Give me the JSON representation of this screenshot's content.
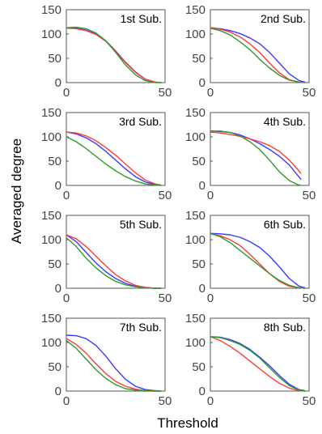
{
  "figure": {
    "xlabel": "Threshold",
    "ylabel": "Averaged degree"
  },
  "colors": {
    "blue": "#3a3aff",
    "red": "#ff3a3a",
    "green": "#2e9a2e",
    "axis": "#555555"
  },
  "chart_data": [
    {
      "type": "line",
      "title": "1st Sub.",
      "xlim": [
        0,
        50
      ],
      "ylim": [
        0,
        150
      ],
      "xticks": [
        "0",
        "50"
      ],
      "yticks": [
        "0",
        "50",
        "100",
        "150"
      ],
      "x": [
        0,
        5,
        10,
        15,
        20,
        25,
        30,
        35,
        40,
        45,
        48
      ],
      "series": [
        {
          "color": "#3a3aff",
          "values": [
            113,
            112,
            108,
            100,
            86,
            65,
            42,
            22,
            7,
            1,
            0
          ]
        },
        {
          "color": "#ff3a3a",
          "values": [
            112,
            111,
            107,
            99,
            85,
            64,
            41,
            21,
            7,
            1,
            0
          ]
        },
        {
          "color": "#2e9a2e",
          "values": [
            113,
            114,
            111,
            102,
            86,
            62,
            36,
            16,
            4,
            0,
            0
          ]
        }
      ]
    },
    {
      "type": "line",
      "title": "2nd Sub.",
      "xlim": [
        0,
        50
      ],
      "ylim": [
        0,
        150
      ],
      "xticks": [
        "0",
        "50"
      ],
      "yticks": [
        "0",
        "50",
        "100",
        "150"
      ],
      "x": [
        0,
        5,
        10,
        15,
        20,
        25,
        30,
        35,
        40,
        45,
        48
      ],
      "series": [
        {
          "color": "#3a3aff",
          "values": [
            113,
            111,
            107,
            101,
            92,
            80,
            62,
            40,
            18,
            4,
            1
          ]
        },
        {
          "color": "#ff3a3a",
          "values": [
            113,
            110,
            104,
            94,
            80,
            62,
            40,
            20,
            6,
            1,
            0
          ]
        },
        {
          "color": "#2e9a2e",
          "values": [
            112,
            107,
            98,
            84,
            68,
            48,
            30,
            15,
            5,
            1,
            0
          ]
        }
      ]
    },
    {
      "type": "line",
      "title": "3rd Sub.",
      "xlim": [
        0,
        50
      ],
      "ylim": [
        0,
        150
      ],
      "xticks": [
        "0",
        "50"
      ],
      "yticks": [
        "0",
        "50",
        "100",
        "150"
      ],
      "x": [
        0,
        5,
        10,
        15,
        20,
        25,
        30,
        35,
        40,
        45,
        48
      ],
      "series": [
        {
          "color": "#3a3aff",
          "values": [
            110,
            106,
            98,
            86,
            70,
            52,
            34,
            18,
            7,
            2,
            0
          ]
        },
        {
          "color": "#ff3a3a",
          "values": [
            110,
            108,
            102,
            92,
            78,
            62,
            44,
            26,
            11,
            3,
            1
          ]
        },
        {
          "color": "#2e9a2e",
          "values": [
            100,
            90,
            76,
            60,
            44,
            30,
            18,
            9,
            3,
            1,
            0
          ]
        }
      ]
    },
    {
      "type": "line",
      "title": "4th Sub.",
      "xlim": [
        0,
        50
      ],
      "ylim": [
        0,
        150
      ],
      "xticks": [
        "0",
        "50"
      ],
      "yticks": [
        "0",
        "50",
        "100",
        "150"
      ],
      "x": [
        0,
        5,
        10,
        15,
        20,
        25,
        30,
        35,
        40,
        44,
        46
      ],
      "series": [
        {
          "color": "#3a3aff",
          "values": [
            112,
            111,
            109,
            104,
            96,
            86,
            74,
            60,
            42,
            22,
            12
          ]
        },
        {
          "color": "#ff3a3a",
          "values": [
            110,
            108,
            105,
            101,
            96,
            90,
            82,
            70,
            52,
            34,
            24
          ]
        },
        {
          "color": "#2e9a2e",
          "values": [
            112,
            112,
            109,
            102,
            90,
            74,
            52,
            28,
            10,
            2,
            0
          ]
        }
      ]
    },
    {
      "type": "line",
      "title": "5th Sub.",
      "xlim": [
        0,
        50
      ],
      "ylim": [
        0,
        150
      ],
      "xticks": [
        "0",
        "50"
      ],
      "yticks": [
        "0",
        "50",
        "100",
        "150"
      ],
      "x": [
        0,
        5,
        10,
        15,
        20,
        25,
        30,
        35,
        40,
        45,
        48
      ],
      "series": [
        {
          "color": "#3a3aff",
          "values": [
            110,
            96,
            74,
            52,
            34,
            20,
            10,
            4,
            1,
            0,
            0
          ]
        },
        {
          "color": "#ff3a3a",
          "values": [
            110,
            102,
            86,
            66,
            46,
            28,
            15,
            6,
            2,
            0,
            0
          ]
        },
        {
          "color": "#2e9a2e",
          "values": [
            104,
            86,
            62,
            42,
            26,
            14,
            7,
            3,
            1,
            0,
            0
          ]
        }
      ]
    },
    {
      "type": "line",
      "title": "6th Sub.",
      "xlim": [
        0,
        50
      ],
      "ylim": [
        0,
        150
      ],
      "xticks": [
        "0",
        "50"
      ],
      "yticks": [
        "0",
        "50",
        "100",
        "150"
      ],
      "x": [
        0,
        5,
        10,
        15,
        20,
        25,
        30,
        35,
        40,
        45,
        48
      ],
      "series": [
        {
          "color": "#3a3aff",
          "values": [
            113,
            112,
            110,
            105,
            96,
            84,
            66,
            44,
            20,
            4,
            1
          ]
        },
        {
          "color": "#ff3a3a",
          "values": [
            112,
            108,
            100,
            88,
            70,
            50,
            30,
            14,
            4,
            1,
            0
          ]
        },
        {
          "color": "#2e9a2e",
          "values": [
            113,
            106,
            94,
            78,
            62,
            46,
            30,
            16,
            6,
            1,
            0
          ]
        }
      ]
    },
    {
      "type": "line",
      "title": "7th Sub.",
      "xlim": [
        0,
        50
      ],
      "ylim": [
        0,
        150
      ],
      "xticks": [
        "0",
        "50"
      ],
      "yticks": [
        "0",
        "50",
        "100",
        "150"
      ],
      "x": [
        0,
        5,
        10,
        15,
        20,
        25,
        30,
        35,
        40,
        45,
        48
      ],
      "series": [
        {
          "color": "#3a3aff",
          "values": [
            115,
            114,
            108,
            94,
            72,
            46,
            24,
            10,
            3,
            1,
            0
          ]
        },
        {
          "color": "#ff3a3a",
          "values": [
            108,
            96,
            78,
            56,
            36,
            20,
            10,
            4,
            1,
            0,
            0
          ]
        },
        {
          "color": "#2e9a2e",
          "values": [
            104,
            88,
            66,
            44,
            26,
            13,
            5,
            2,
            0,
            0,
            0
          ]
        }
      ]
    },
    {
      "type": "line",
      "title": "8th Sub.",
      "xlim": [
        0,
        50
      ],
      "ylim": [
        0,
        150
      ],
      "xticks": [
        "0",
        "50"
      ],
      "yticks": [
        "0",
        "50",
        "100",
        "150"
      ],
      "x": [
        0,
        5,
        10,
        15,
        20,
        25,
        30,
        35,
        40,
        45,
        48
      ],
      "series": [
        {
          "color": "#3a3aff",
          "values": [
            112,
            111,
            106,
            98,
            86,
            70,
            52,
            32,
            14,
            3,
            1
          ]
        },
        {
          "color": "#ff3a3a",
          "values": [
            112,
            104,
            92,
            78,
            62,
            46,
            30,
            16,
            6,
            1,
            0
          ]
        },
        {
          "color": "#2e9a2e",
          "values": [
            112,
            110,
            104,
            96,
            84,
            68,
            48,
            28,
            11,
            2,
            0
          ]
        }
      ]
    }
  ]
}
